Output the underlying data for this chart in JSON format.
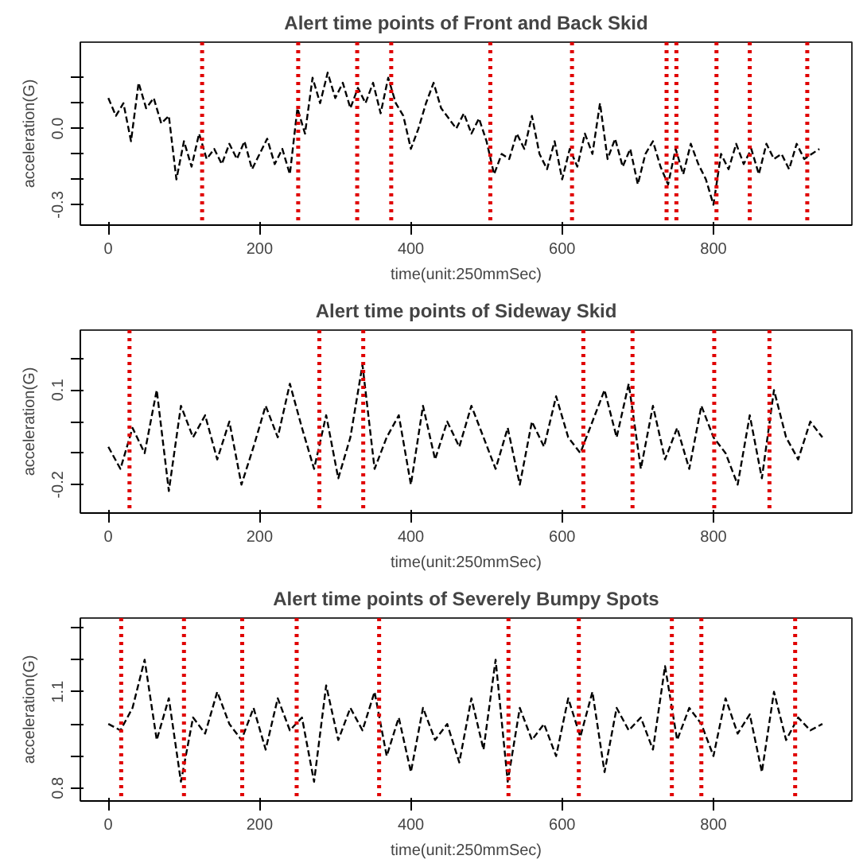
{
  "chart_data": [
    {
      "type": "line",
      "title": "Alert time points of Front and Back Skid",
      "xlabel": "time(unit:250mmSec)",
      "ylabel": "acceleration(G)",
      "xlim": [
        -37,
        983
      ],
      "xticks": [
        0,
        200,
        400,
        600,
        800
      ],
      "ylim": [
        -0.38,
        0.34
      ],
      "yticks": [
        -0.3,
        {
          "value": -0.2,
          "label": null
        },
        {
          "value": -0.1,
          "label": null
        },
        {
          "value": 0.0,
          "label": "0.0"
        },
        {
          "value": 0.1,
          "label": null
        },
        {
          "value": 0.2,
          "label": null
        }
      ],
      "grid": false,
      "line_style": "dashed",
      "marker": "none",
      "series": [
        {
          "color": "#000000",
          "x": [
            0,
            10,
            20,
            30,
            40,
            50,
            60,
            70,
            80,
            90,
            100,
            110,
            120,
            130,
            140,
            150,
            160,
            170,
            180,
            190,
            200,
            210,
            220,
            230,
            240,
            250,
            260,
            270,
            280,
            290,
            300,
            310,
            320,
            330,
            340,
            350,
            360,
            370,
            380,
            390,
            400,
            410,
            420,
            430,
            440,
            450,
            460,
            470,
            480,
            490,
            500,
            510,
            520,
            530,
            540,
            550,
            560,
            570,
            580,
            590,
            600,
            610,
            620,
            630,
            640,
            650,
            660,
            670,
            680,
            690,
            700,
            710,
            720,
            730,
            740,
            750,
            760,
            770,
            780,
            790,
            800,
            810,
            820,
            830,
            840,
            850,
            860,
            870,
            880,
            890,
            900,
            910,
            920,
            930,
            940
          ],
          "values": [
            0.12,
            0.05,
            0.1,
            -0.05,
            0.18,
            0.08,
            0.12,
            0.02,
            0.05,
            -0.2,
            -0.05,
            -0.15,
            -0.02,
            -0.12,
            -0.08,
            -0.14,
            -0.06,
            -0.12,
            -0.05,
            -0.16,
            -0.1,
            -0.04,
            -0.14,
            -0.08,
            -0.18,
            0.08,
            -0.02,
            0.2,
            0.1,
            0.22,
            0.12,
            0.18,
            0.08,
            0.16,
            0.1,
            0.18,
            0.06,
            0.2,
            0.1,
            0.05,
            -0.08,
            0.0,
            0.1,
            0.18,
            0.08,
            0.04,
            0.0,
            0.06,
            -0.02,
            0.04,
            -0.05,
            -0.18,
            -0.1,
            -0.12,
            -0.02,
            -0.08,
            0.05,
            -0.1,
            -0.16,
            -0.05,
            -0.2,
            -0.08,
            -0.15,
            -0.02,
            -0.1,
            0.1,
            -0.12,
            -0.04,
            -0.15,
            -0.08,
            -0.22,
            -0.1,
            -0.05,
            -0.15,
            -0.22,
            -0.08,
            -0.18,
            -0.06,
            -0.14,
            -0.2,
            -0.3,
            -0.1,
            -0.16,
            -0.06,
            -0.14,
            -0.08,
            -0.18,
            -0.06,
            -0.12,
            -0.1,
            -0.16,
            -0.06,
            -0.12,
            -0.1,
            -0.08
          ]
        }
      ],
      "ref_lines": [
        {
          "axis": "x",
          "value": 124,
          "color": "#e00000",
          "line_style": "dotted"
        },
        {
          "axis": "x",
          "value": 251,
          "color": "#e00000",
          "line_style": "dotted"
        },
        {
          "axis": "x",
          "value": 329,
          "color": "#e00000",
          "line_style": "dotted"
        },
        {
          "axis": "x",
          "value": 374,
          "color": "#e00000",
          "line_style": "dotted"
        },
        {
          "axis": "x",
          "value": 505,
          "color": "#e00000",
          "line_style": "dotted"
        },
        {
          "axis": "x",
          "value": 613,
          "color": "#e00000",
          "line_style": "dotted"
        },
        {
          "axis": "x",
          "value": 738,
          "color": "#e00000",
          "line_style": "dotted"
        },
        {
          "axis": "x",
          "value": 751,
          "color": "#e00000",
          "line_style": "dotted"
        },
        {
          "axis": "x",
          "value": 804,
          "color": "#e00000",
          "line_style": "dotted"
        },
        {
          "axis": "x",
          "value": 848,
          "color": "#e00000",
          "line_style": "dotted"
        },
        {
          "axis": "x",
          "value": 924,
          "color": "#e00000",
          "line_style": "dotted"
        }
      ]
    },
    {
      "type": "line",
      "title": "Alert time points of Sideway Skid",
      "xlabel": "time(unit:250mmSec)",
      "ylabel": "acceleration(G)",
      "xlim": [
        -37,
        983
      ],
      "xticks": [
        0,
        200,
        400,
        600,
        800
      ],
      "ylim": [
        -0.29,
        0.29
      ],
      "yticks": [
        -0.2,
        {
          "value": -0.1,
          "label": null
        },
        {
          "value": 0.0,
          "label": null
        },
        0.1,
        {
          "value": 0.2,
          "label": null
        }
      ],
      "grid": false,
      "line_style": "dashed",
      "marker": "none",
      "series": [
        {
          "color": "#000000",
          "x": [
            0,
            16,
            32,
            48,
            64,
            80,
            96,
            112,
            128,
            144,
            160,
            176,
            192,
            208,
            224,
            240,
            256,
            272,
            288,
            304,
            320,
            336,
            352,
            368,
            384,
            400,
            416,
            432,
            448,
            464,
            480,
            496,
            512,
            528,
            544,
            560,
            576,
            592,
            608,
            624,
            640,
            656,
            672,
            688,
            704,
            720,
            736,
            752,
            768,
            784,
            800,
            816,
            832,
            848,
            864,
            880,
            896,
            912,
            928,
            944
          ],
          "values": [
            -0.08,
            -0.15,
            -0.02,
            -0.1,
            0.1,
            -0.22,
            0.05,
            -0.05,
            0.02,
            -0.12,
            0.0,
            -0.2,
            -0.08,
            0.05,
            -0.05,
            0.12,
            -0.02,
            -0.15,
            0.02,
            -0.18,
            -0.05,
            0.18,
            -0.15,
            -0.05,
            0.02,
            -0.2,
            0.05,
            -0.12,
            0.0,
            -0.08,
            0.05,
            -0.05,
            -0.15,
            -0.02,
            -0.2,
            0.0,
            -0.08,
            0.08,
            -0.05,
            -0.1,
            0.0,
            0.1,
            -0.05,
            0.12,
            -0.15,
            0.05,
            -0.12,
            -0.02,
            -0.15,
            0.05,
            -0.05,
            -0.1,
            -0.2,
            0.02,
            -0.18,
            0.1,
            -0.05,
            -0.12,
            0.0,
            -0.05
          ]
        }
      ],
      "ref_lines": [
        {
          "axis": "x",
          "value": 28,
          "color": "#e00000",
          "line_style": "dotted"
        },
        {
          "axis": "x",
          "value": 279,
          "color": "#e00000",
          "line_style": "dotted"
        },
        {
          "axis": "x",
          "value": 337,
          "color": "#e00000",
          "line_style": "dotted"
        },
        {
          "axis": "x",
          "value": 628,
          "color": "#e00000",
          "line_style": "dotted"
        },
        {
          "axis": "x",
          "value": 693,
          "color": "#e00000",
          "line_style": "dotted"
        },
        {
          "axis": "x",
          "value": 801,
          "color": "#e00000",
          "line_style": "dotted"
        },
        {
          "axis": "x",
          "value": 874,
          "color": "#e00000",
          "line_style": "dotted"
        }
      ]
    },
    {
      "type": "line",
      "title": "Alert time points of Severely Bumpy Spots",
      "xlabel": "time(unit:250mmSec)",
      "ylabel": "acceleration(G)",
      "xlim": [
        -37,
        983
      ],
      "xticks": [
        0,
        200,
        400,
        600,
        800
      ],
      "ylim": [
        0.76,
        1.33
      ],
      "yticks": [
        0.8,
        {
          "value": 0.9,
          "label": null
        },
        {
          "value": 1.0,
          "label": null
        },
        1.1,
        {
          "value": 1.2,
          "label": null
        },
        {
          "value": 1.3,
          "label": null
        }
      ],
      "grid": false,
      "line_style": "dashed",
      "marker": "none",
      "series": [
        {
          "color": "#000000",
          "x": [
            0,
            16,
            32,
            48,
            64,
            80,
            96,
            112,
            128,
            144,
            160,
            176,
            192,
            208,
            224,
            240,
            256,
            272,
            288,
            304,
            320,
            336,
            352,
            368,
            384,
            400,
            416,
            432,
            448,
            464,
            480,
            496,
            512,
            528,
            544,
            560,
            576,
            592,
            608,
            624,
            640,
            656,
            672,
            688,
            704,
            720,
            736,
            752,
            768,
            784,
            800,
            816,
            832,
            848,
            864,
            880,
            896,
            912,
            928,
            944
          ],
          "values": [
            1.0,
            0.98,
            1.05,
            1.2,
            0.95,
            1.08,
            0.82,
            1.02,
            0.97,
            1.1,
            1.0,
            0.95,
            1.05,
            0.92,
            1.08,
            0.98,
            1.02,
            0.82,
            1.12,
            0.95,
            1.05,
            0.98,
            1.1,
            0.9,
            1.02,
            0.85,
            1.05,
            0.95,
            1.0,
            0.88,
            1.08,
            0.92,
            1.2,
            0.82,
            1.05,
            0.95,
            1.0,
            0.9,
            1.08,
            0.96,
            1.1,
            0.85,
            1.05,
            0.98,
            1.02,
            0.92,
            1.18,
            0.95,
            1.05,
            1.0,
            0.9,
            1.08,
            0.97,
            1.03,
            0.85,
            1.1,
            0.95,
            1.02,
            0.98,
            1.0
          ]
        }
      ],
      "ref_lines": [
        {
          "axis": "x",
          "value": 17,
          "color": "#e00000",
          "line_style": "dotted"
        },
        {
          "axis": "x",
          "value": 100,
          "color": "#e00000",
          "line_style": "dotted"
        },
        {
          "axis": "x",
          "value": 177,
          "color": "#e00000",
          "line_style": "dotted"
        },
        {
          "axis": "x",
          "value": 249,
          "color": "#e00000",
          "line_style": "dotted"
        },
        {
          "axis": "x",
          "value": 358,
          "color": "#e00000",
          "line_style": "dotted"
        },
        {
          "axis": "x",
          "value": 529,
          "color": "#e00000",
          "line_style": "dotted"
        },
        {
          "axis": "x",
          "value": 622,
          "color": "#e00000",
          "line_style": "dotted"
        },
        {
          "axis": "x",
          "value": 745,
          "color": "#e00000",
          "line_style": "dotted"
        },
        {
          "axis": "x",
          "value": 784,
          "color": "#e00000",
          "line_style": "dotted"
        },
        {
          "axis": "x",
          "value": 908,
          "color": "#e00000",
          "line_style": "dotted"
        }
      ]
    }
  ]
}
